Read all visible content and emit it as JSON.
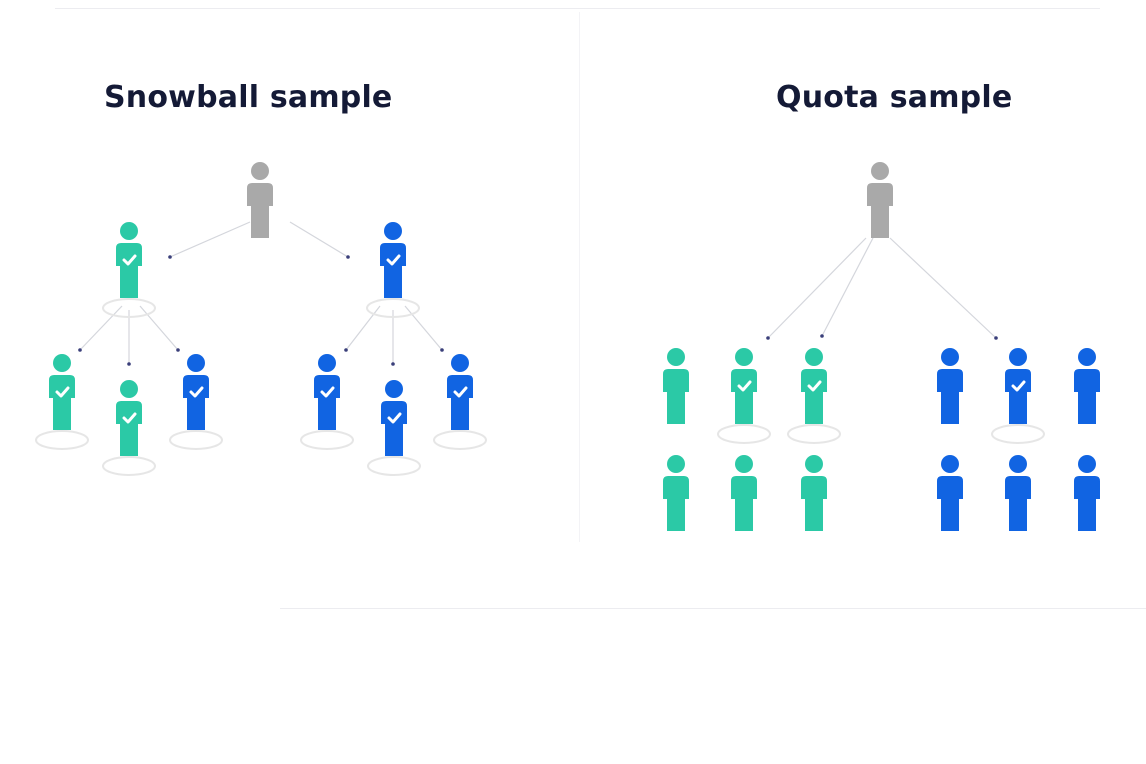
{
  "panels": {
    "snowball": {
      "title": "Snowball sample"
    },
    "quota": {
      "title": "Quota sample"
    }
  },
  "colors": {
    "seed": "#a9a9a9",
    "teal": "#2bc9a6",
    "blue": "#1164e2",
    "check": "#ffffff",
    "ring": "#e6e6e6",
    "line": "#d4d6dc",
    "dot": "#3a3f7a",
    "title": "#141a36"
  },
  "icons": {
    "person": "person-icon",
    "check": "check-icon"
  },
  "diagram": {
    "snowball": {
      "seed": {
        "group": "seed",
        "checked": false,
        "ring": false
      },
      "recruits": [
        {
          "group": "teal",
          "checked": true,
          "ring": true
        },
        {
          "group": "blue",
          "checked": true,
          "ring": true
        }
      ],
      "second_wave": [
        {
          "group": "teal",
          "checked": true,
          "ring": true
        },
        {
          "group": "teal",
          "checked": true,
          "ring": true
        },
        {
          "group": "blue",
          "checked": true,
          "ring": true
        },
        {
          "group": "blue",
          "checked": true,
          "ring": true
        },
        {
          "group": "blue",
          "checked": true,
          "ring": true
        },
        {
          "group": "blue",
          "checked": true,
          "ring": true
        }
      ]
    },
    "quota": {
      "seed": {
        "group": "seed",
        "checked": false,
        "ring": false
      },
      "teal_group": [
        {
          "group": "teal",
          "checked": false,
          "ring": false
        },
        {
          "group": "teal",
          "checked": true,
          "ring": true
        },
        {
          "group": "teal",
          "checked": true,
          "ring": true
        },
        {
          "group": "teal",
          "checked": false,
          "ring": false
        },
        {
          "group": "teal",
          "checked": false,
          "ring": false
        },
        {
          "group": "teal",
          "checked": false,
          "ring": false
        }
      ],
      "blue_group": [
        {
          "group": "blue",
          "checked": false,
          "ring": false
        },
        {
          "group": "blue",
          "checked": true,
          "ring": true
        },
        {
          "group": "blue",
          "checked": false,
          "ring": false
        },
        {
          "group": "blue",
          "checked": false,
          "ring": false
        },
        {
          "group": "blue",
          "checked": false,
          "ring": false
        },
        {
          "group": "blue",
          "checked": false,
          "ring": false
        }
      ]
    }
  }
}
